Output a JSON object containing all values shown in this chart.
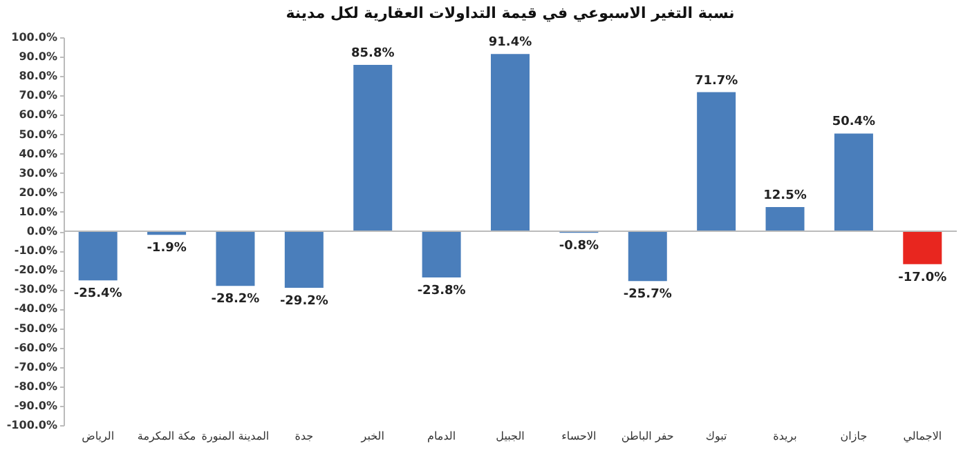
{
  "chart_data": {
    "type": "bar",
    "title": "نسبة التغير الاسبوعي في قيمة التداولات العقارية لكل مدينة",
    "categories": [
      "الرياض",
      "مكة المكرمة",
      "المدينة المنورة",
      "جدة",
      "الخبر",
      "الدمام",
      "الجبيل",
      "الاحساء",
      "حفر الباطن",
      "تبوك",
      "بريدة",
      "جازان",
      "الاجمالي"
    ],
    "values": [
      -25.4,
      -1.9,
      -28.2,
      -29.2,
      85.8,
      -23.8,
      91.4,
      -0.8,
      -25.7,
      71.7,
      12.5,
      50.4,
      -17.0
    ],
    "colors": [
      "#4a7ebb",
      "#4a7ebb",
      "#4a7ebb",
      "#4a7ebb",
      "#4a7ebb",
      "#4a7ebb",
      "#4a7ebb",
      "#4a7ebb",
      "#4a7ebb",
      "#4a7ebb",
      "#4a7ebb",
      "#4a7ebb",
      "#e8261f"
    ],
    "value_labels": [
      "-25.4%",
      "-1.9%",
      "-28.2%",
      "-29.2%",
      "85.8%",
      "-23.8%",
      "91.4%",
      "-0.8%",
      "-25.7%",
      "71.7%",
      "12.5%",
      "50.4%",
      "-17.0%"
    ],
    "ylim": [
      -100,
      100
    ],
    "ref_lines": [
      {
        "axis": "y",
        "value": 0,
        "color": "#bbbbbb"
      }
    ],
    "yticks": [
      {
        "value": 100,
        "label": "100.0%"
      },
      {
        "value": 90,
        "label": "90.0%"
      },
      {
        "value": 80,
        "label": "80.0%"
      },
      {
        "value": 70,
        "label": "70.0%"
      },
      {
        "value": 60,
        "label": "60.0%"
      },
      {
        "value": 50,
        "label": "50.0%"
      },
      {
        "value": 40,
        "label": "40.0%"
      },
      {
        "value": 30,
        "label": "30.0%"
      },
      {
        "value": 20,
        "label": "20.0%"
      },
      {
        "value": 10,
        "label": "10.0%"
      },
      {
        "value": 0,
        "label": "0.0%"
      },
      {
        "value": -10,
        "label": "-10.0%"
      },
      {
        "value": -20,
        "label": "-20.0%"
      },
      {
        "value": -30,
        "label": "-30.0%"
      },
      {
        "value": -40,
        "label": "-40.0%"
      },
      {
        "value": -50,
        "label": "-50.0%"
      },
      {
        "value": -60,
        "label": "-60.0%"
      },
      {
        "value": -70,
        "label": "-70.0%"
      },
      {
        "value": -80,
        "label": "-80.0%"
      },
      {
        "value": -90,
        "label": "-90.0%"
      },
      {
        "value": -100,
        "label": "-100.0%"
      }
    ]
  }
}
